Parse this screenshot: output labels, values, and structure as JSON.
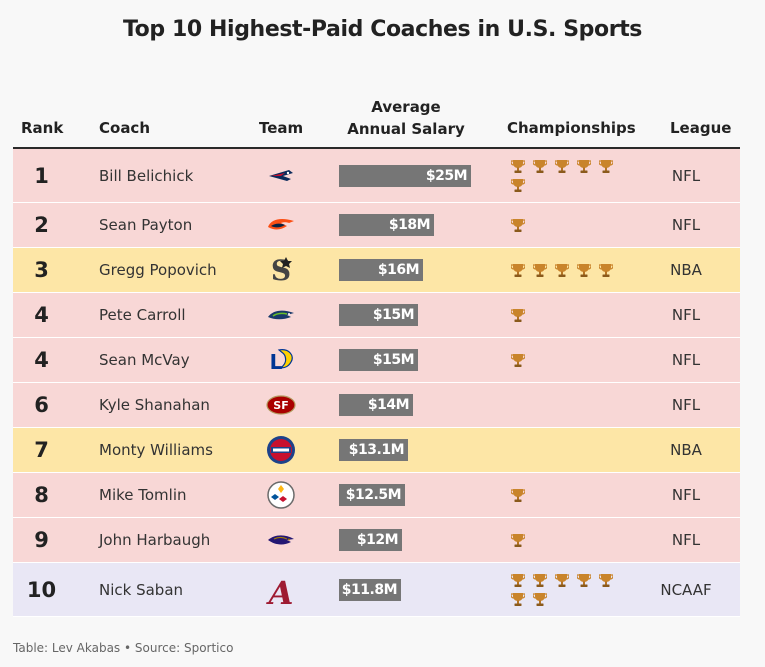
{
  "title": "Top 10 Highest-Paid Coaches in U.S. Sports",
  "headers": {
    "rank": "Rank",
    "coach": "Coach",
    "team": "Team",
    "salary_line1": "Average",
    "salary_line2": "Annual Salary",
    "championships": "Championships",
    "league": "League"
  },
  "footer": "Table: Lev Akabas • Source: Sportico",
  "colors": {
    "NFL": "#f8d7d6",
    "NBA": "#fde6a6",
    "NCAAF": "#e9e7f5",
    "bar": "#767676",
    "trophy": "#c9842b"
  },
  "chart_data": {
    "type": "table",
    "columns": [
      "Rank",
      "Coach",
      "Team",
      "Average Annual Salary",
      "Championships",
      "League"
    ],
    "salary_max": 25,
    "rows": [
      {
        "rank": "1",
        "coach": "Bill Belichick",
        "team_icon": "new-england-patriots-logo-icon",
        "salary": 25,
        "salary_label": "$25M",
        "championships": 6,
        "league": "NFL"
      },
      {
        "rank": "2",
        "coach": "Sean Payton",
        "team_icon": "denver-broncos-logo-icon",
        "salary": 18,
        "salary_label": "$18M",
        "championships": 1,
        "league": "NFL"
      },
      {
        "rank": "3",
        "coach": "Gregg Popovich",
        "team_icon": "san-antonio-spurs-logo-icon",
        "salary": 16,
        "salary_label": "$16M",
        "championships": 5,
        "league": "NBA"
      },
      {
        "rank": "4",
        "coach": "Pete Carroll",
        "team_icon": "seattle-seahawks-logo-icon",
        "salary": 15,
        "salary_label": "$15M",
        "championships": 1,
        "league": "NFL"
      },
      {
        "rank": "4",
        "coach": "Sean McVay",
        "team_icon": "los-angeles-rams-logo-icon",
        "salary": 15,
        "salary_label": "$15M",
        "championships": 1,
        "league": "NFL"
      },
      {
        "rank": "6",
        "coach": "Kyle Shanahan",
        "team_icon": "san-francisco-49ers-logo-icon",
        "salary": 14,
        "salary_label": "$14M",
        "championships": 0,
        "league": "NFL"
      },
      {
        "rank": "7",
        "coach": "Monty Williams",
        "team_icon": "detroit-pistons-logo-icon",
        "salary": 13.1,
        "salary_label": "$13.1M",
        "championships": 0,
        "league": "NBA"
      },
      {
        "rank": "8",
        "coach": "Mike Tomlin",
        "team_icon": "pittsburgh-steelers-logo-icon",
        "salary": 12.5,
        "salary_label": "$12.5M",
        "championships": 1,
        "league": "NFL"
      },
      {
        "rank": "9",
        "coach": "John Harbaugh",
        "team_icon": "baltimore-ravens-logo-icon",
        "salary": 12,
        "salary_label": "$12M",
        "championships": 1,
        "league": "NFL"
      },
      {
        "rank": "10",
        "coach": "Nick Saban",
        "team_icon": "alabama-crimson-tide-logo-icon",
        "salary": 11.8,
        "salary_label": "$11.8M",
        "championships": 7,
        "league": "NCAAF"
      }
    ]
  }
}
